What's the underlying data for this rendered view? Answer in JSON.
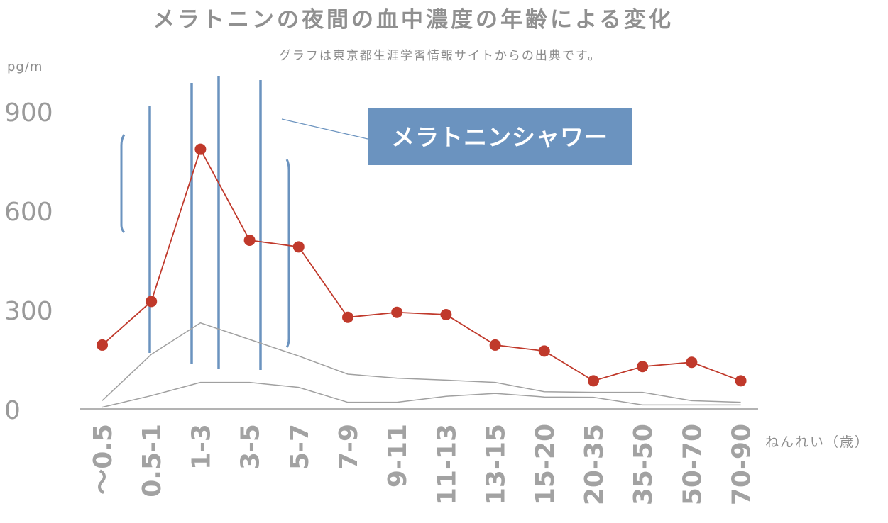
{
  "chart_data": {
    "type": "line",
    "title": "メラトニンの夜間の血中濃度の年齢による変化",
    "subtitle": "グラフは東京都生涯学習情報サイトからの出典です。",
    "ylabel": "pg/m",
    "xlabel": "ねんれい（歳）",
    "ylim": [
      0,
      900
    ],
    "yticks": [
      "0",
      "300",
      "600",
      "900"
    ],
    "categories": [
      "～0.5",
      "0.5-1",
      "1-3",
      "3-5",
      "5-7",
      "7-9",
      "9-11",
      "11-13",
      "13-15",
      "15-20",
      "20-35",
      "35-50",
      "50-70",
      "70-90"
    ],
    "series": [
      {
        "values": [
          193,
          325,
          785,
          510,
          490,
          277,
          292,
          285,
          193,
          175,
          85,
          128,
          141,
          85
        ],
        "color": "#c0392b",
        "markers": true
      },
      {
        "values": [
          25,
          165,
          260,
          210,
          160,
          105,
          93,
          87,
          80,
          52,
          50,
          50,
          25,
          20
        ],
        "color": "#a0a0a0",
        "markers": false
      },
      {
        "values": [
          5,
          40,
          80,
          80,
          65,
          20,
          20,
          38,
          47,
          36,
          35,
          12,
          12,
          12
        ],
        "color": "#a0a0a0",
        "markers": false
      }
    ],
    "annotation": {
      "text": "メラトニンシャワー",
      "color": "#6b93bf"
    },
    "grid": false
  }
}
